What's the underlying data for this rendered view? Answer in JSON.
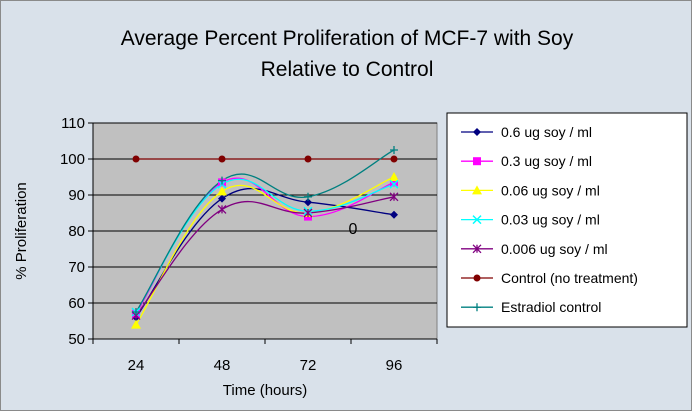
{
  "chart_data": {
    "type": "line",
    "title_line1": "Average Percent Proliferation of MCF-7 with Soy",
    "title_line2": "Relative to Control",
    "xlabel": "Time (hours)",
    "ylabel": "% Proliferation",
    "categories": [
      "24",
      "48",
      "72",
      "96"
    ],
    "ylim": [
      50,
      110
    ],
    "yticks": [
      50,
      60,
      70,
      80,
      90,
      100,
      110
    ],
    "grid": true,
    "legend_position": "right",
    "annotation": "0",
    "series": [
      {
        "name": "0.6 ug soy / ml",
        "color": "#000080",
        "marker": "diamond",
        "values": [
          56,
          89,
          88,
          84.5
        ]
      },
      {
        "name": "0.3 ug soy / ml",
        "color": "#ff00ff",
        "marker": "square",
        "values": [
          57,
          93.5,
          84,
          93.5
        ]
      },
      {
        "name": "0.06 ug soy / ml",
        "color": "#ffff00",
        "marker": "triangle",
        "values": [
          54,
          91,
          85,
          95
        ]
      },
      {
        "name": "0.03 ug soy / ml",
        "color": "#00ffff",
        "marker": "x",
        "values": [
          57.5,
          93,
          85.5,
          93
        ]
      },
      {
        "name": "0.006 ug soy / ml",
        "color": "#800080",
        "marker": "star",
        "values": [
          56.5,
          86,
          85,
          89.5
        ]
      },
      {
        "name": "Control (no treatment)",
        "color": "#800000",
        "marker": "circle",
        "values": [
          100,
          100,
          100,
          100
        ]
      },
      {
        "name": "Estradiol control",
        "color": "#008080",
        "marker": "plus",
        "values": [
          57.5,
          94,
          89.5,
          102.5
        ]
      }
    ]
  }
}
